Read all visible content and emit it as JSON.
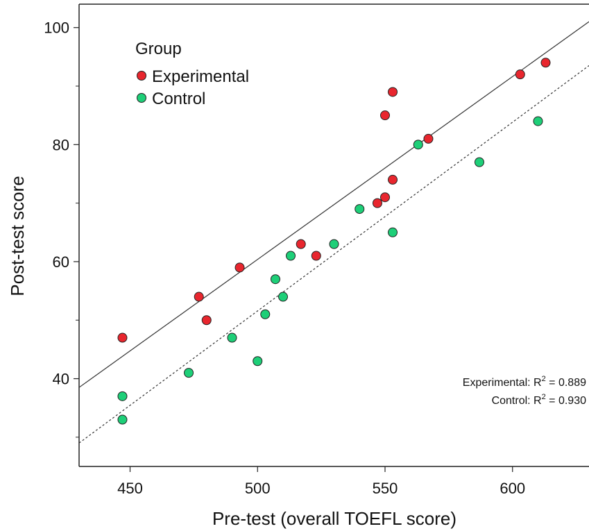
{
  "chart_data": {
    "type": "scatter",
    "xlabel": "Pre-test (overall TOEFL score)",
    "ylabel": "Post-test score",
    "xlim": [
      430,
      630
    ],
    "ylim": [
      25,
      104
    ],
    "x_ticks": [
      450,
      500,
      550,
      600
    ],
    "y_ticks": [
      40,
      60,
      80,
      100
    ],
    "grid": false,
    "legend": {
      "title": "Group",
      "position": "top-left",
      "entries": [
        {
          "name": "Experimental",
          "color": "#e8262e"
        },
        {
          "name": "Control",
          "color": "#1ecf78"
        }
      ]
    },
    "series": [
      {
        "name": "Experimental",
        "color": "#e8262e",
        "points": [
          [
            447,
            47
          ],
          [
            477,
            54
          ],
          [
            480,
            50
          ],
          [
            493,
            59
          ],
          [
            517,
            63
          ],
          [
            523,
            61
          ],
          [
            547,
            70
          ],
          [
            550,
            71
          ],
          [
            550,
            85
          ],
          [
            553,
            74
          ],
          [
            553,
            89
          ],
          [
            567,
            81
          ],
          [
            603,
            92
          ],
          [
            613,
            94
          ]
        ],
        "fit": {
          "x": [
            430,
            630
          ],
          "y": [
            38.5,
            101
          ]
        },
        "fit_style": "solid",
        "r2_label": "Experimental: R",
        "r2_exp": "2",
        "r2_value": " = 0.889"
      },
      {
        "name": "Control",
        "color": "#1ecf78",
        "points": [
          [
            447,
            37
          ],
          [
            447,
            33
          ],
          [
            473,
            41
          ],
          [
            490,
            47
          ],
          [
            500,
            43
          ],
          [
            503,
            51
          ],
          [
            507,
            57
          ],
          [
            510,
            54
          ],
          [
            513,
            61
          ],
          [
            530,
            63
          ],
          [
            540,
            69
          ],
          [
            553,
            65
          ],
          [
            563,
            80
          ],
          [
            587,
            77
          ],
          [
            610,
            84
          ]
        ],
        "fit": {
          "x": [
            430,
            630
          ],
          "y": [
            29,
            93.5
          ]
        },
        "fit_style": "dashed",
        "r2_label": "Control: R",
        "r2_exp": "2",
        "r2_value": " = 0.930"
      }
    ]
  }
}
